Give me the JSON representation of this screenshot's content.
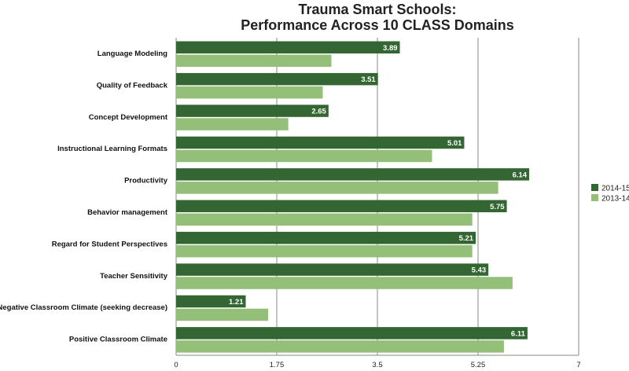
{
  "chart_data": {
    "type": "bar",
    "orientation": "horizontal",
    "title_lines": [
      "Trauma Smart Schools:",
      "Performance Across 10 CLASS Domains"
    ],
    "categories": [
      "Language Modeling",
      "Quality of Feedback",
      "Concept Development",
      "Instructional Learning Formats",
      "Productivity",
      "Behavior management",
      "Regard for Student Perspectives",
      "Teacher Sensitivity",
      "Negative Classroom Climate (seeking decrease)",
      "Positive Classroom Climate"
    ],
    "series": [
      {
        "name": "2014-15",
        "color": "#336633",
        "values": [
          3.89,
          3.51,
          2.65,
          5.01,
          6.14,
          5.75,
          5.21,
          5.43,
          1.21,
          6.11
        ],
        "value_labels": [
          "3.89",
          "3.51",
          "2.65",
          "5.01",
          "6.14",
          "5.75",
          "5.21",
          "5.43",
          "1.21",
          "6.11"
        ]
      },
      {
        "name": "2013-14",
        "color": "#93bf78",
        "values": [
          2.7,
          2.55,
          1.95,
          4.45,
          5.6,
          5.15,
          5.15,
          5.85,
          1.6,
          5.7
        ]
      }
    ],
    "xlim": [
      0,
      7
    ],
    "xticks": [
      0,
      1.75,
      3.5,
      5.25,
      7
    ],
    "xtick_labels": [
      "0",
      "1.75",
      "3.5",
      "5.25",
      "7"
    ],
    "grid": true,
    "legend_position": "right"
  }
}
